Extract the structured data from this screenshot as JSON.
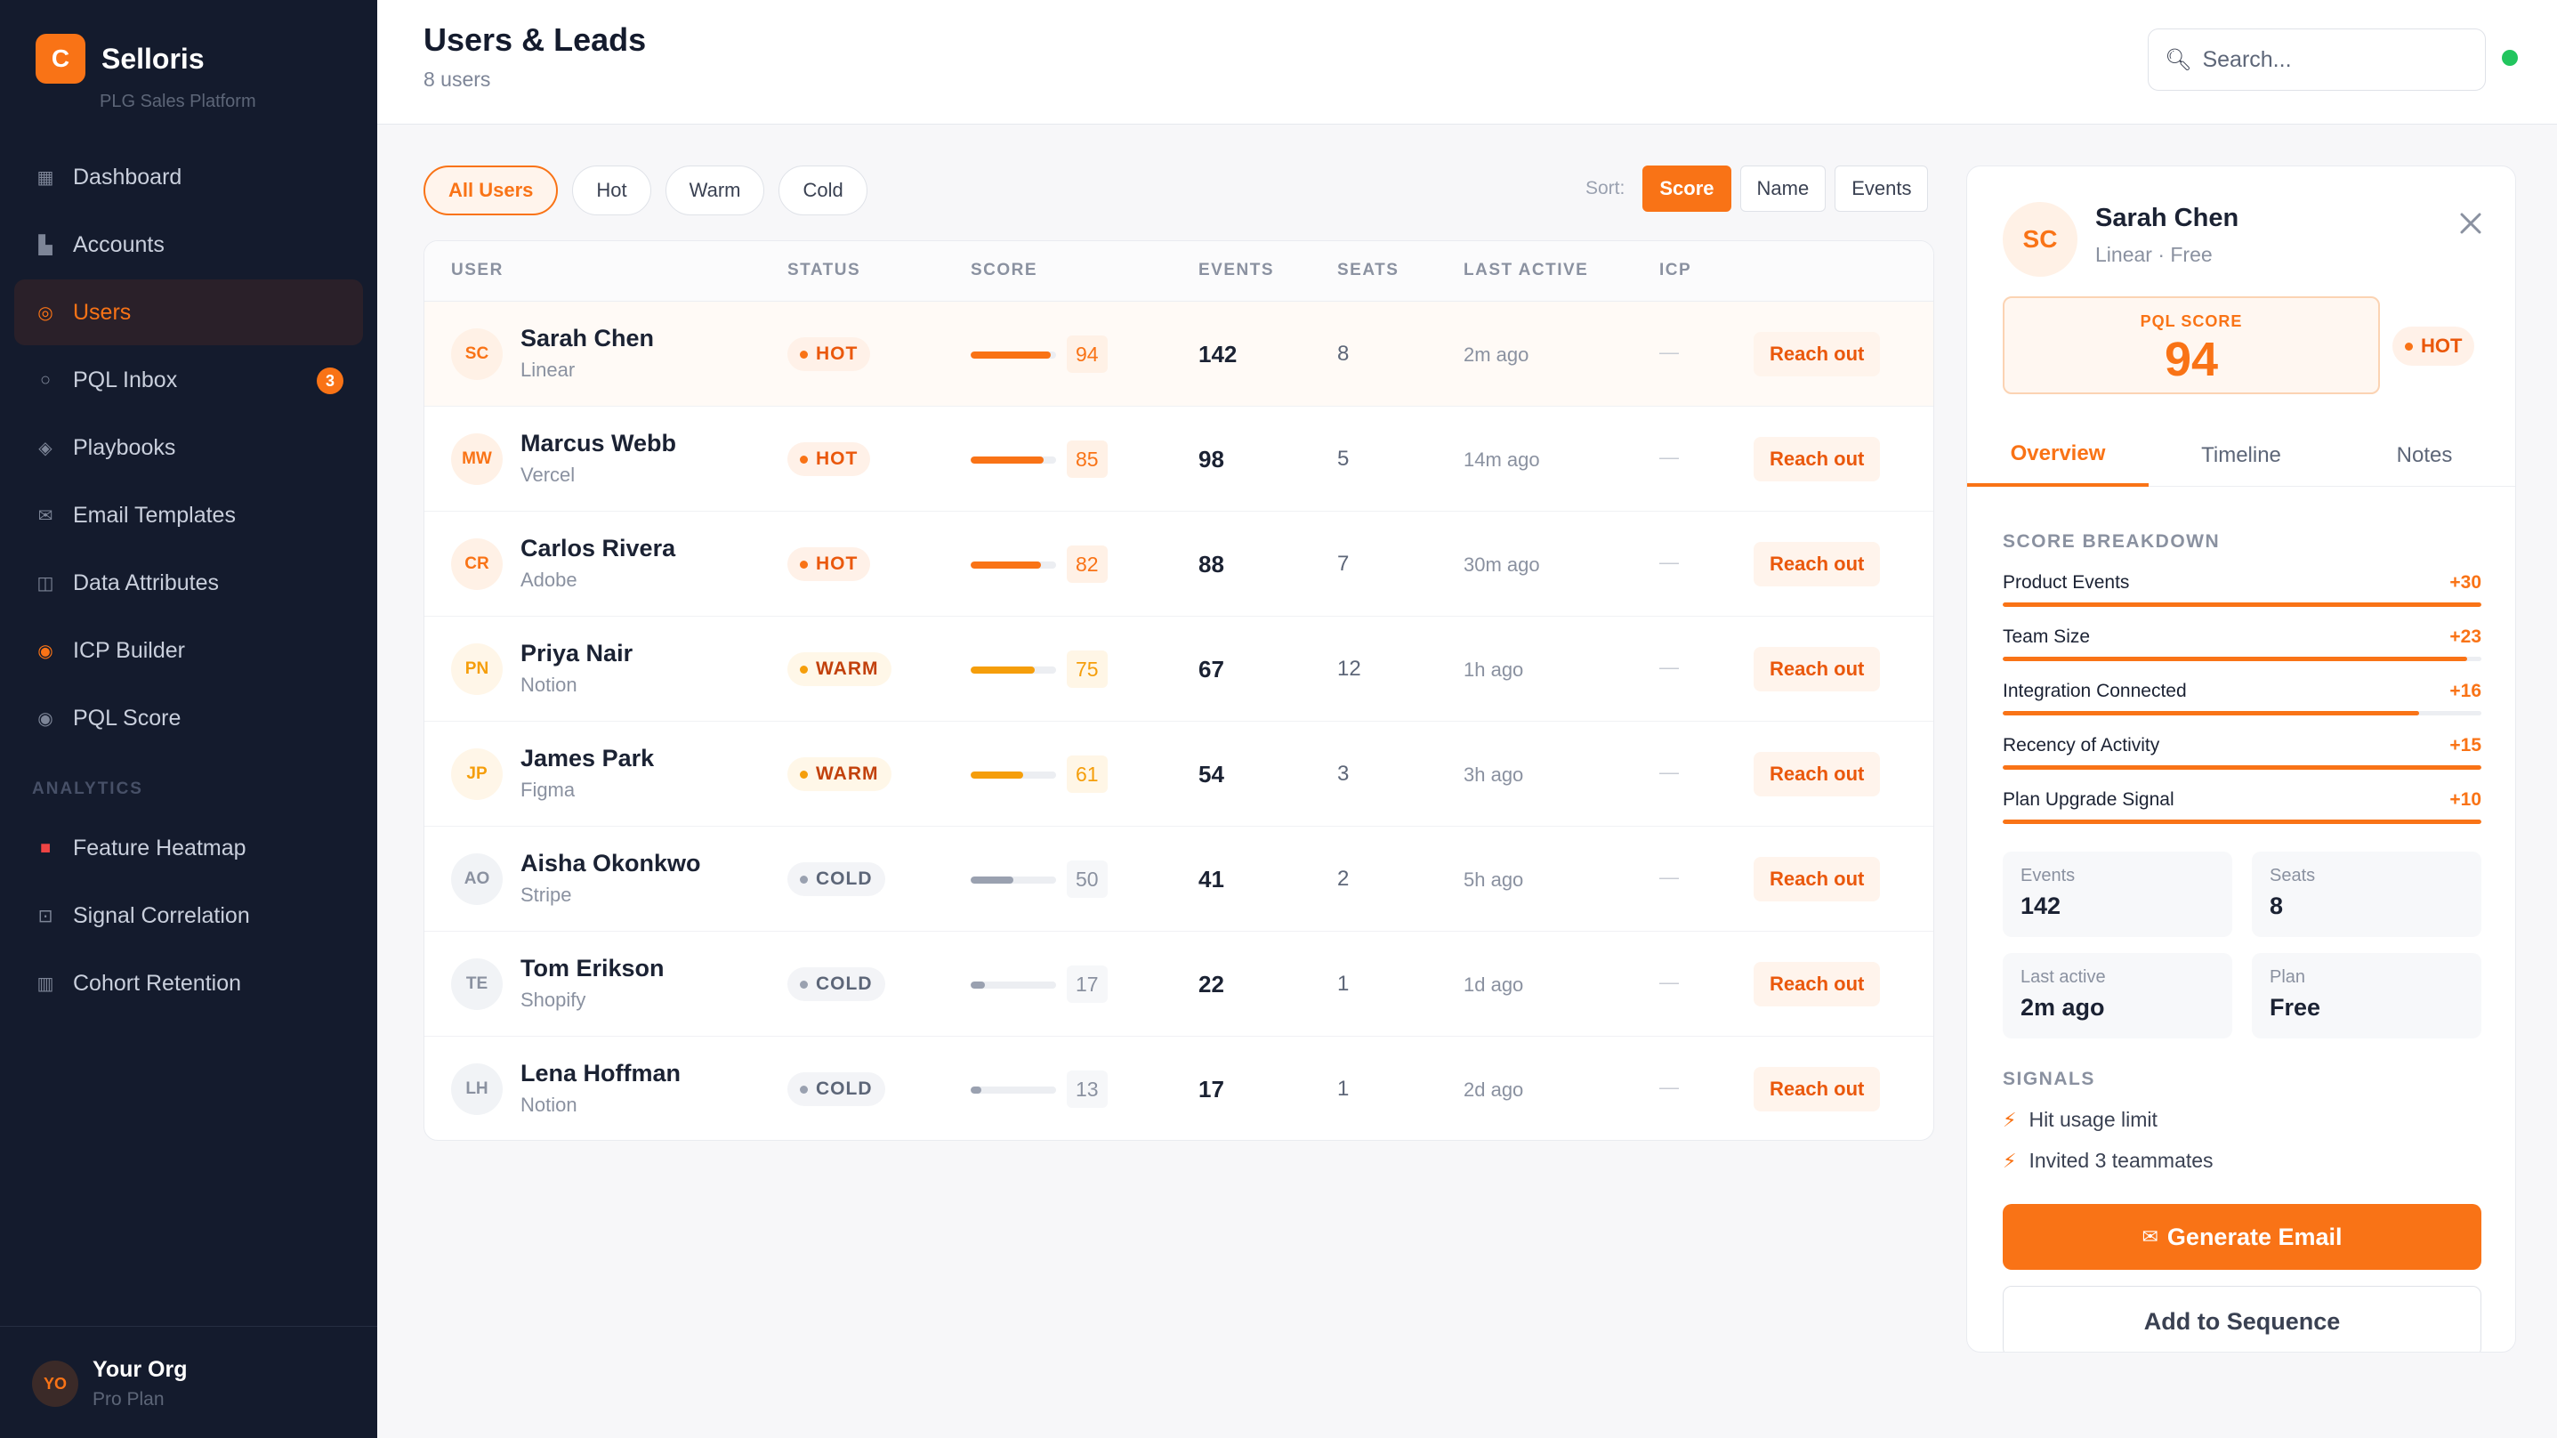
{
  "brand": {
    "logo_letter": "C",
    "name": "Selloris",
    "subtitle": "PLG Sales Platform"
  },
  "nav": {
    "items": [
      {
        "label": "Dashboard",
        "icon": "grid-icon"
      },
      {
        "label": "Accounts",
        "icon": "building-icon"
      },
      {
        "label": "Users",
        "icon": "target-icon",
        "active": true
      },
      {
        "label": "PQL Inbox",
        "icon": "circle-icon",
        "badge": "3"
      },
      {
        "label": "Playbooks",
        "icon": "diamond-icon"
      },
      {
        "label": "Email Templates",
        "icon": "envelope-icon"
      },
      {
        "label": "Data Attributes",
        "icon": "columns-icon"
      },
      {
        "label": "ICP Builder",
        "icon": "bullseye-icon"
      },
      {
        "label": "PQL Score",
        "icon": "radio-icon"
      }
    ],
    "section_label": "ANALYTICS",
    "analytics_items": [
      {
        "label": "Feature Heatmap",
        "icon": "heatmap-icon"
      },
      {
        "label": "Signal Correlation",
        "icon": "correlation-icon"
      },
      {
        "label": "Cohort Retention",
        "icon": "bar-chart-icon"
      }
    ]
  },
  "org": {
    "initials": "YO",
    "name": "Your Org",
    "plan": "Pro Plan"
  },
  "header": {
    "title": "Users & Leads",
    "subtitle": "8 users",
    "search_placeholder": "Search..."
  },
  "filters": [
    "All Users",
    "Hot",
    "Warm",
    "Cold"
  ],
  "sort": {
    "label": "Sort:",
    "options": [
      "Score",
      "Name",
      "Events"
    ]
  },
  "table": {
    "columns": [
      "USER",
      "STATUS",
      "SCORE",
      "EVENTS",
      "SEATS",
      "LAST ACTIVE",
      "ICP"
    ],
    "action_label": "Reach out",
    "rows": [
      {
        "initials": "SC",
        "name": "Sarah Chen",
        "company": "Linear",
        "status": "HOT",
        "score": 94,
        "events": "142",
        "seats": "8",
        "last_active": "2m ago",
        "icp": "—"
      },
      {
        "initials": "MW",
        "name": "Marcus Webb",
        "company": "Vercel",
        "status": "HOT",
        "score": 85,
        "events": "98",
        "seats": "5",
        "last_active": "14m ago",
        "icp": "—"
      },
      {
        "initials": "CR",
        "name": "Carlos Rivera",
        "company": "Adobe",
        "status": "HOT",
        "score": 82,
        "events": "88",
        "seats": "7",
        "last_active": "30m ago",
        "icp": "—"
      },
      {
        "initials": "PN",
        "name": "Priya Nair",
        "company": "Notion",
        "status": "WARM",
        "score": 75,
        "events": "67",
        "seats": "12",
        "last_active": "1h ago",
        "icp": "—"
      },
      {
        "initials": "JP",
        "name": "James Park",
        "company": "Figma",
        "status": "WARM",
        "score": 61,
        "events": "54",
        "seats": "3",
        "last_active": "3h ago",
        "icp": "—"
      },
      {
        "initials": "AO",
        "name": "Aisha Okonkwo",
        "company": "Stripe",
        "status": "COLD",
        "score": 50,
        "events": "41",
        "seats": "2",
        "last_active": "5h ago",
        "icp": "—"
      },
      {
        "initials": "TE",
        "name": "Tom Erikson",
        "company": "Shopify",
        "status": "COLD",
        "score": 17,
        "events": "22",
        "seats": "1",
        "last_active": "1d ago",
        "icp": "—"
      },
      {
        "initials": "LH",
        "name": "Lena Hoffman",
        "company": "Notion",
        "status": "COLD",
        "score": 13,
        "events": "17",
        "seats": "1",
        "last_active": "2d ago",
        "icp": "—"
      }
    ]
  },
  "panel": {
    "initials": "SC",
    "name": "Sarah Chen",
    "subtitle": "Linear · Free",
    "pql_label": "PQL SCORE",
    "pql_score": "94",
    "status": "HOT",
    "tabs": [
      "Overview",
      "Timeline",
      "Notes"
    ],
    "breakdown_title": "SCORE BREAKDOWN",
    "breakdown": [
      {
        "label": "Product Events",
        "value": "+30",
        "fraction": 1.0
      },
      {
        "label": "Team Size",
        "value": "+23",
        "fraction": 0.97
      },
      {
        "label": "Integration Connected",
        "value": "+16",
        "fraction": 0.87
      },
      {
        "label": "Recency of Activity",
        "value": "+15",
        "fraction": 1.0
      },
      {
        "label": "Plan Upgrade Signal",
        "value": "+10",
        "fraction": 1.0
      }
    ],
    "stats": [
      {
        "label": "Events",
        "value": "142"
      },
      {
        "label": "Seats",
        "value": "8"
      },
      {
        "label": "Last active",
        "value": "2m ago"
      },
      {
        "label": "Plan",
        "value": "Free"
      }
    ],
    "signals_title": "SIGNALS",
    "signals": [
      "Hit usage limit",
      "Invited 3 teammates"
    ],
    "generate_label": "Generate Email",
    "sequence_label": "Add to Sequence"
  },
  "colors": {
    "accent": "#f97316",
    "sidebar": "#141b2d",
    "online": "#22c55e"
  }
}
